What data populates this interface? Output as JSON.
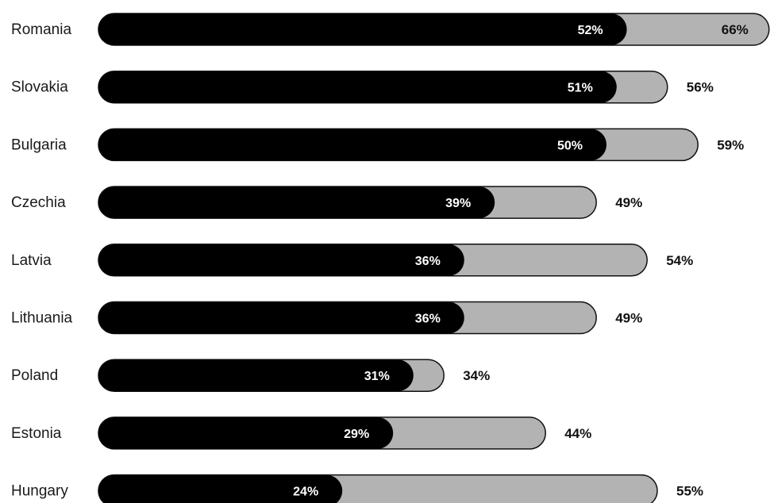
{
  "colors": {
    "primary_bar": "#000000",
    "total_bar": "#b3b3b3",
    "bubble": "#b3b3b3",
    "text": "#111111",
    "inner_text": "#ffffff"
  },
  "chart_data": {
    "type": "bar",
    "orientation": "horizontal",
    "categories": [
      "Romania",
      "Slovakia",
      "Bulgaria",
      "Czechia",
      "Latvia",
      "Lithuania",
      "Poland",
      "Estonia",
      "Hungary"
    ],
    "series": [
      {
        "values": [
          52,
          51,
          50,
          39,
          36,
          36,
          31,
          29,
          24
        ],
        "labels": [
          "52%",
          "51%",
          "50%",
          "39%",
          "36%",
          "36%",
          "31%",
          "29%",
          "24%"
        ],
        "style": "inner"
      },
      {
        "values": [
          66,
          56,
          59,
          49,
          54,
          49,
          34,
          44,
          55
        ],
        "labels": [
          "66%",
          "56%",
          "59%",
          "49%",
          "54%",
          "49%",
          "34%",
          "44%",
          "55%"
        ],
        "style": "outer"
      }
    ],
    "xlim": [
      0,
      68
    ],
    "grid": false,
    "legend": "none"
  }
}
